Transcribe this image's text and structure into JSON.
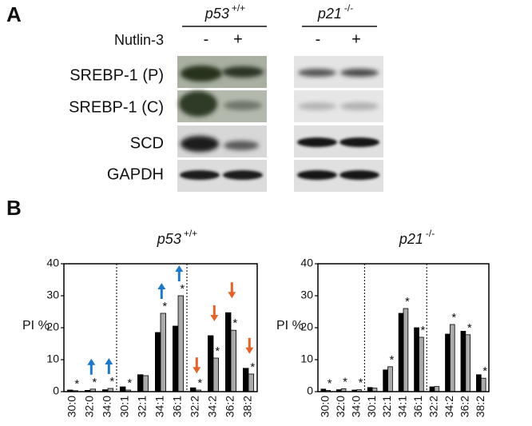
{
  "panel_a": {
    "label": "A",
    "treatment": "Nutlin-3",
    "groups": [
      {
        "name": "p53",
        "genotype": "+/+",
        "lanes": [
          "-",
          "+"
        ]
      },
      {
        "name": "p21",
        "genotype": "-/-",
        "lanes": [
          "-",
          "+"
        ]
      }
    ],
    "rows": [
      "SREBP-1 (P)",
      "SREBP-1 (C)",
      "SCD",
      "GAPDH"
    ]
  },
  "panel_b_label": "B",
  "chart_data": [
    {
      "type": "bar",
      "title": "p53",
      "title_superscript": "+/+",
      "y_label": "PI %",
      "categories": [
        "30:0",
        "32:0",
        "34:0",
        "30:1",
        "32:1",
        "34:1",
        "36:1",
        "32:2",
        "34:2",
        "36:2",
        "38:2"
      ],
      "series": [
        {
          "color": "#000000",
          "values": [
            0.5,
            0.4,
            0.6,
            1.5,
            5.3,
            18.5,
            20.5,
            1.2,
            17.5,
            24.7,
            7.3
          ]
        },
        {
          "color": "#aaaaaa",
          "values": [
            0.3,
            0.8,
            1.0,
            0.5,
            5.0,
            24.5,
            30,
            0.5,
            10.5,
            19.2,
            5.5
          ]
        }
      ],
      "significance_labels": [
        "*",
        "*",
        "*",
        "*",
        null,
        "*",
        "*",
        "*",
        "*",
        "*",
        "*"
      ],
      "change_arrows": [
        null,
        "up",
        "up",
        null,
        null,
        "up",
        "up",
        "down",
        "down",
        "down",
        "down"
      ],
      "arrow_colors": {
        "up": "#1f78c8",
        "down": "#e3632a"
      },
      "ylim": [
        0,
        40
      ],
      "yticks": [
        0,
        10,
        20,
        30,
        40
      ]
    },
    {
      "type": "bar",
      "title": "p21",
      "title_superscript": "-/-",
      "y_label": "PI %",
      "categories": [
        "30:0",
        "32:0",
        "34:0",
        "30:1",
        "32:1",
        "34:1",
        "36:1",
        "32:2",
        "34:2",
        "36:2",
        "38:2"
      ],
      "series": [
        {
          "color": "#000000",
          "values": [
            0.8,
            0.6,
            0.5,
            1.3,
            6.8,
            24.5,
            20,
            1.5,
            18,
            18.9,
            5.3
          ]
        },
        {
          "color": "#aaaaaa",
          "values": [
            0.4,
            0.9,
            0.6,
            1.1,
            7.8,
            26,
            17,
            1.6,
            21,
            17.8,
            4.2
          ]
        }
      ],
      "significance_labels": [
        "*",
        "*",
        "*",
        null,
        "*",
        "*",
        "*",
        null,
        "*",
        "*",
        "*"
      ],
      "change_arrows": [
        null,
        null,
        null,
        null,
        null,
        null,
        null,
        null,
        null,
        null,
        null
      ],
      "arrow_colors": {
        "up": "#1f78c8",
        "down": "#e3632a"
      },
      "ylim": [
        0,
        40
      ],
      "yticks": [
        0,
        10,
        20,
        30,
        40
      ]
    }
  ]
}
